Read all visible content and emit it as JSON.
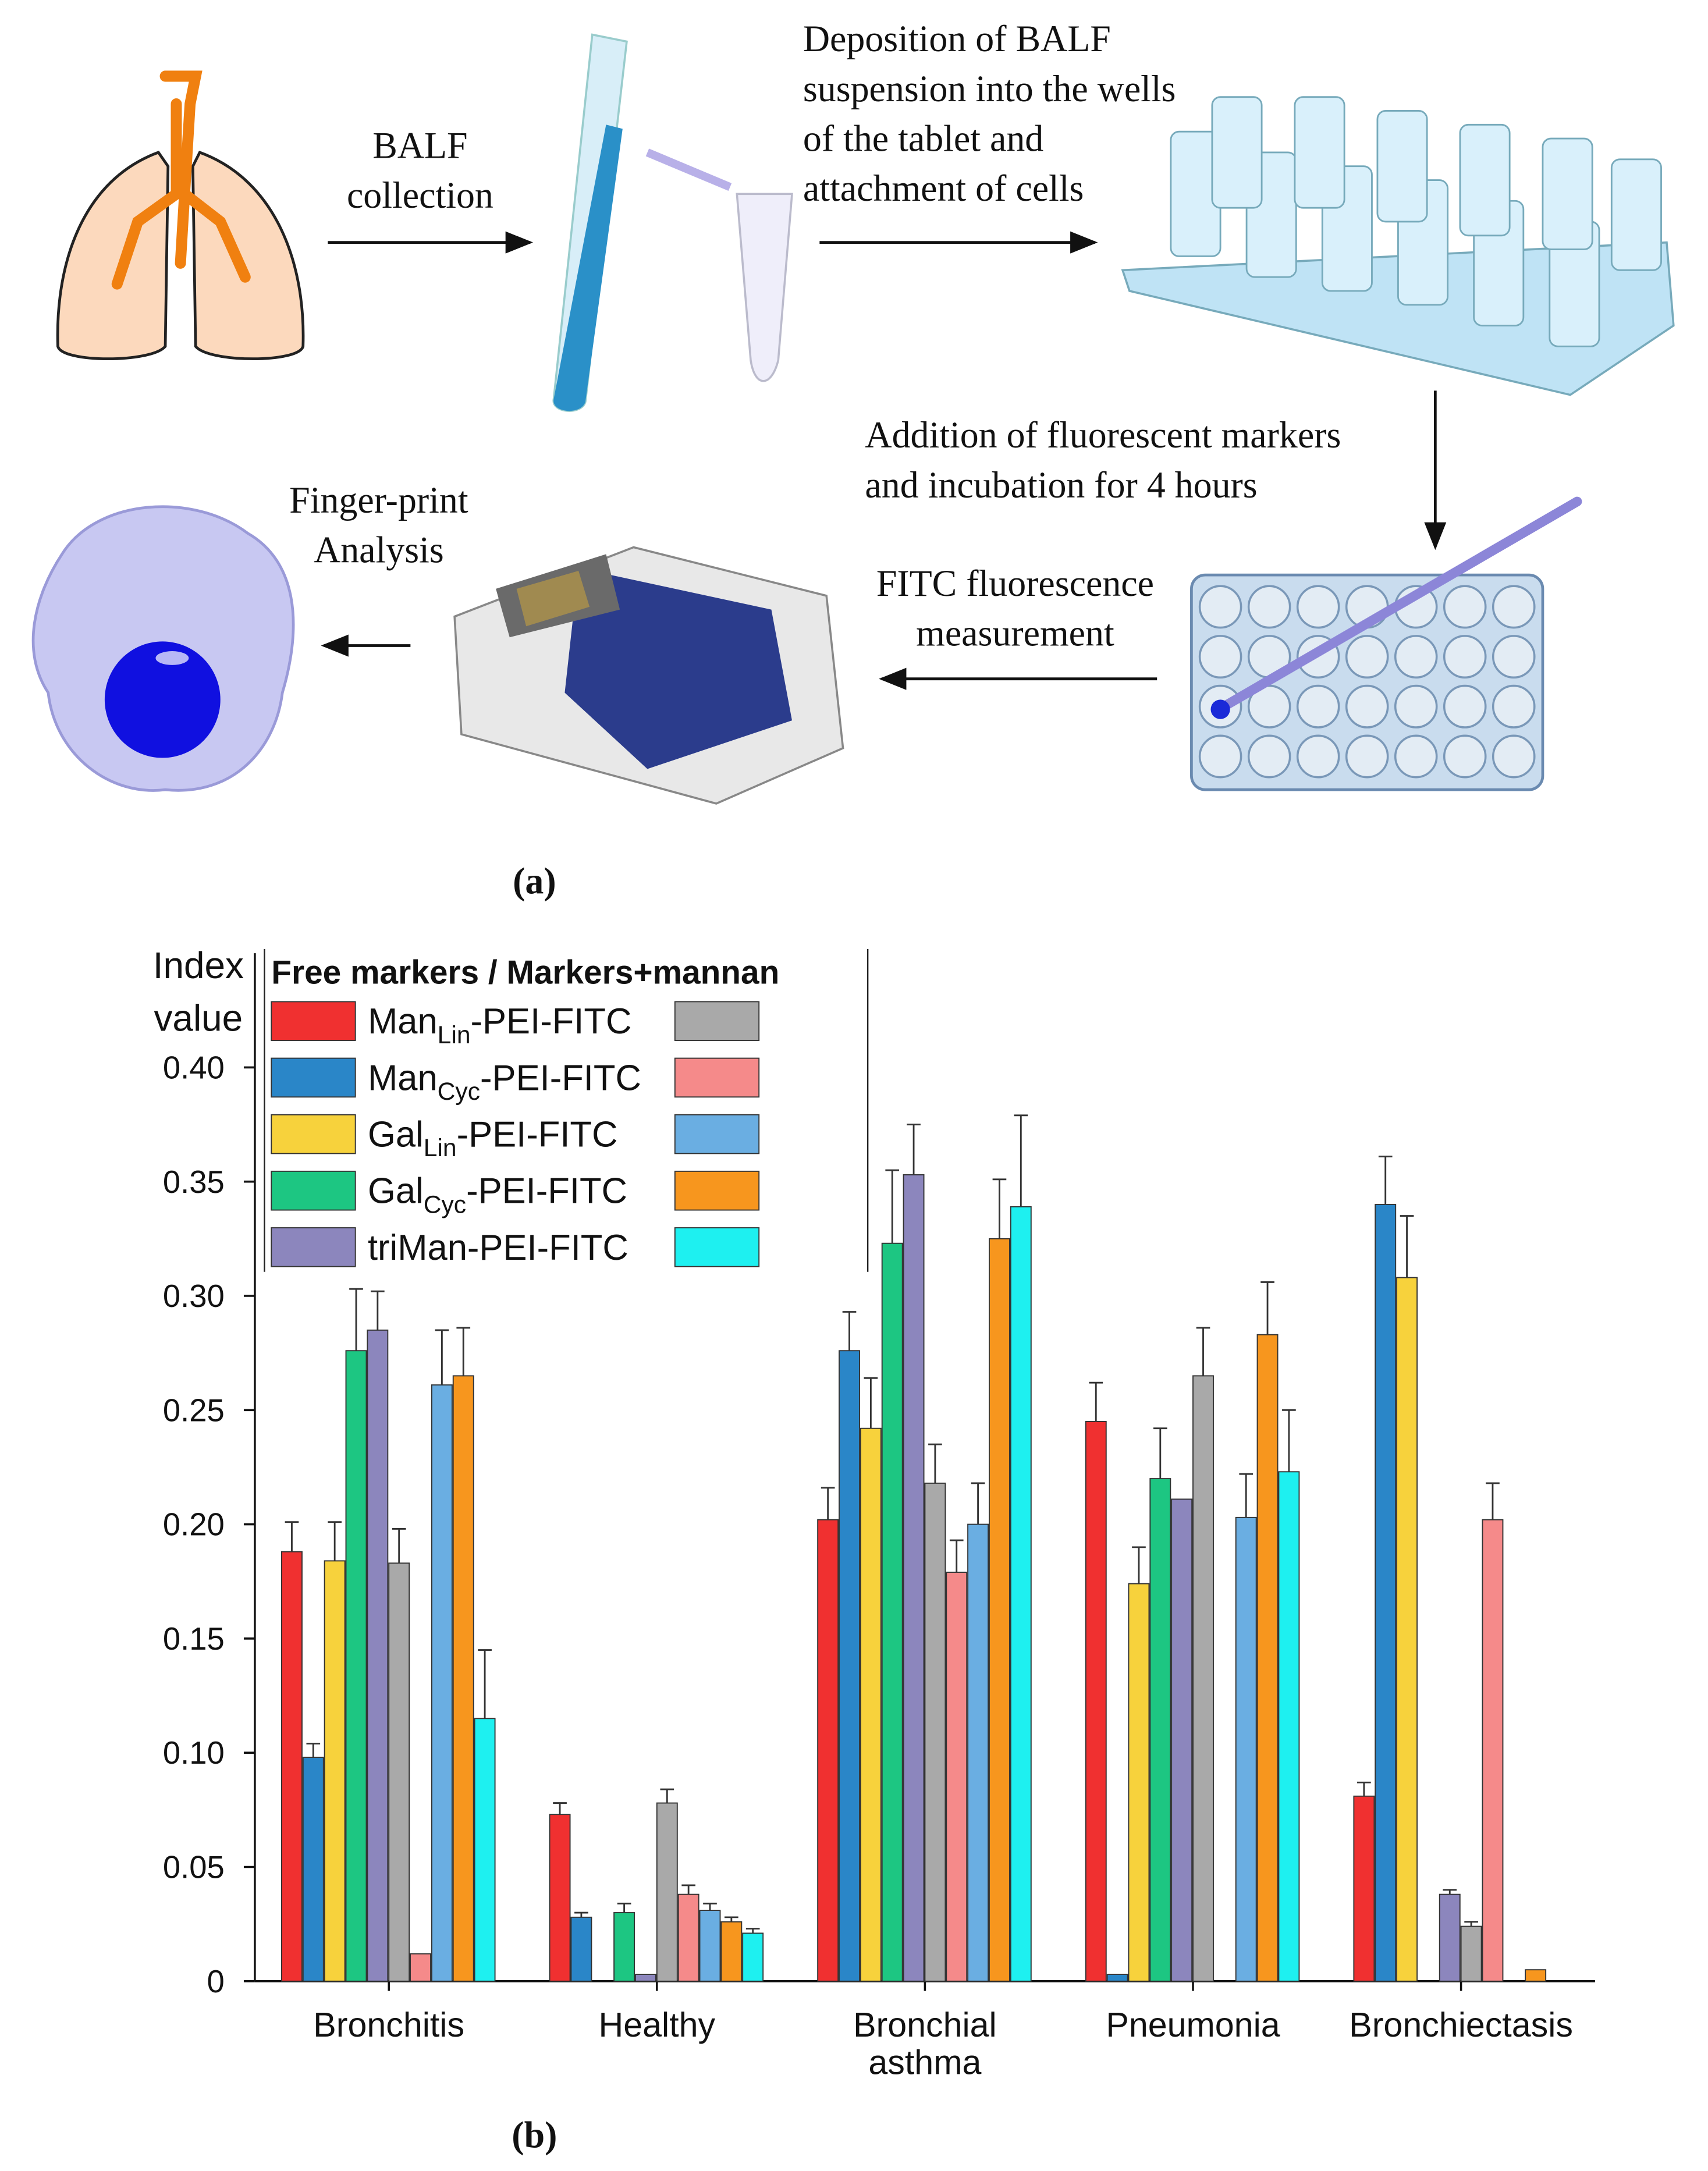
{
  "diagram": {
    "steps": [
      {
        "lines": [
          "BALF",
          "collection"
        ]
      },
      {
        "lines": [
          "Deposition of BALF",
          "suspension into the wells",
          "of the tablet and",
          "attachment of cells"
        ]
      },
      {
        "lines": [
          "Addition of fluorescent markers",
          "and incubation for 4 hours"
        ]
      },
      {
        "lines": [
          "FITC fluorescence",
          "measurement"
        ]
      },
      {
        "lines": [
          "Finger-print",
          "Analysis"
        ]
      }
    ],
    "panel_a": "(a)",
    "panel_b": "(b)"
  },
  "chart_data": {
    "type": "bar",
    "ylabel": [
      "Index",
      "value"
    ],
    "legend_title": "Free markers / Markers+mannan",
    "legend_position": "upper left",
    "categories": [
      "Bronchitis",
      "Healthy",
      "Bronchial asthma",
      "Pneumonia",
      "Bronchiectasis"
    ],
    "ylim": [
      0,
      0.45
    ],
    "yticks": [
      0,
      0.05,
      {
        "value": 0.1,
        "label": "0.10"
      },
      0.15,
      {
        "value": 0.2,
        "label": "0.20"
      },
      0.25,
      {
        "value": 0.3,
        "label": "0.30"
      },
      0.35,
      {
        "value": 0.4,
        "label": "0.40"
      }
    ],
    "series": [
      {
        "name": [
          "Man",
          "Lin",
          "-PEI-FITC"
        ],
        "color": "#f03030",
        "values": [
          0.188,
          0.073,
          0.202,
          0.245,
          0.081
        ],
        "errors": [
          0.013,
          0.005,
          0.014,
          0.017,
          0.006
        ]
      },
      {
        "name": [
          "Man",
          "Cyc",
          "-PEI-FITC"
        ],
        "color": "#2a86c8",
        "values": [
          0.098,
          0.028,
          0.276,
          0.003,
          0.34
        ],
        "errors": [
          0.006,
          0.002,
          0.017,
          null,
          0.021
        ]
      },
      {
        "name": [
          "Gal",
          "Lin",
          "-PEI-FITC"
        ],
        "color": "#f7d23c",
        "values": [
          0.184,
          null,
          0.242,
          0.174,
          0.308
        ],
        "errors": [
          0.017,
          null,
          0.022,
          0.016,
          0.027
        ]
      },
      {
        "name": [
          "Gal",
          "Cyc",
          "-PEI-FITC"
        ],
        "color": "#1dc682",
        "values": [
          0.276,
          0.03,
          0.323,
          0.22,
          null
        ],
        "errors": [
          0.027,
          0.004,
          0.032,
          0.022,
          null
        ]
      },
      {
        "name": [
          "triMan-PEI-FITC"
        ],
        "color": "#8c86bd",
        "values": [
          0.285,
          0.003,
          0.353,
          0.211,
          0.038
        ],
        "errors": [
          0.017,
          null,
          0.022,
          null,
          0.002
        ]
      },
      {
        "color": "#a9a9a9",
        "values": [
          0.183,
          0.078,
          0.218,
          0.265,
          0.024
        ],
        "errors": [
          0.015,
          0.006,
          0.017,
          0.021,
          0.002
        ]
      },
      {
        "color": "#f58a8a",
        "values": [
          0.012,
          0.038,
          0.179,
          null,
          0.202
        ],
        "errors": [
          null,
          0.004,
          0.014,
          null,
          0.016
        ]
      },
      {
        "color": "#6aaee2",
        "values": [
          0.261,
          0.031,
          0.2,
          0.203,
          null
        ],
        "errors": [
          0.024,
          0.003,
          0.018,
          0.019,
          null
        ]
      },
      {
        "color": "#f7961e",
        "values": [
          0.265,
          0.026,
          0.325,
          0.283,
          0.005
        ],
        "errors": [
          0.021,
          0.002,
          0.026,
          0.023,
          null
        ]
      },
      {
        "color": "#1ef0f0",
        "values": [
          0.115,
          0.021,
          0.339,
          0.223,
          null
        ],
        "errors": [
          0.03,
          0.002,
          0.04,
          0.027,
          null
        ]
      }
    ]
  }
}
